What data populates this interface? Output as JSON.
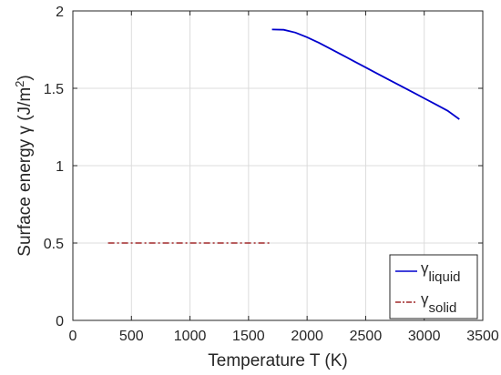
{
  "chart_data": {
    "type": "line",
    "xlabel": "Temperature T (K)",
    "ylabel_main": "Surface energy γ (J/m",
    "ylabel_sup": "2",
    "ylabel_close": ")",
    "xlim": [
      0,
      3500
    ],
    "ylim": [
      0,
      2
    ],
    "xticks": [
      0,
      500,
      1000,
      1500,
      2000,
      2500,
      3000,
      3500
    ],
    "xtick_labels": [
      "0",
      "500",
      "1000",
      "1500",
      "2000",
      "2500",
      "3000",
      "3500"
    ],
    "yticks": [
      0,
      0.5,
      1,
      1.5,
      2
    ],
    "ytick_labels": [
      "0",
      "0.5",
      "1",
      "1.5",
      "2"
    ],
    "grid": true,
    "legend_position": "bottom-right",
    "series": [
      {
        "symbol": "γ",
        "subscript": "liquid",
        "color": "#0000cd",
        "style": "solid",
        "x": [
          1700,
          1800,
          1900,
          2000,
          2100,
          2200,
          2300,
          2400,
          2500,
          2600,
          2700,
          2800,
          2900,
          3000,
          3100,
          3200,
          3300
        ],
        "y": [
          1.88,
          1.878,
          1.86,
          1.83,
          1.795,
          1.755,
          1.715,
          1.675,
          1.635,
          1.595,
          1.555,
          1.515,
          1.475,
          1.435,
          1.395,
          1.355,
          1.3
        ]
      },
      {
        "symbol": "γ",
        "subscript": "solid",
        "color": "#a0282a",
        "style": "dashdot",
        "x": [
          300,
          1700
        ],
        "y": [
          0.5,
          0.5
        ]
      }
    ]
  }
}
